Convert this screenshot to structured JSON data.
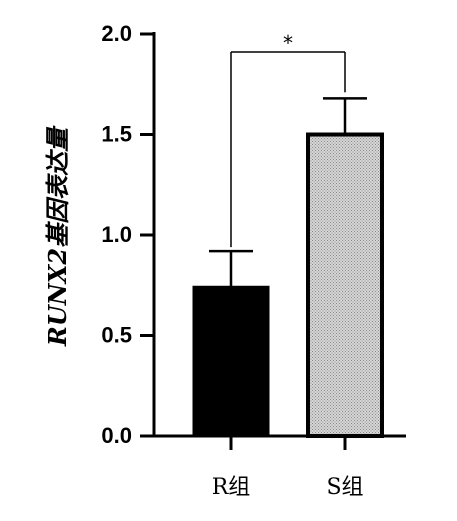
{
  "chart_data": {
    "type": "bar",
    "categories": [
      "R组",
      "S组"
    ],
    "values": [
      0.74,
      1.5
    ],
    "errors": [
      0.18,
      0.18
    ],
    "bar_colors": [
      "#000000",
      "#c8c8c8"
    ],
    "ylabel": "RUNX2基因表达量",
    "xlabel": "",
    "ylim": [
      0,
      2.0
    ],
    "yticks": [
      "0.0",
      "0.5",
      "1.0",
      "1.5",
      "2.0"
    ],
    "significance": {
      "between": [
        0,
        1
      ],
      "label": "*"
    },
    "grid": false
  }
}
